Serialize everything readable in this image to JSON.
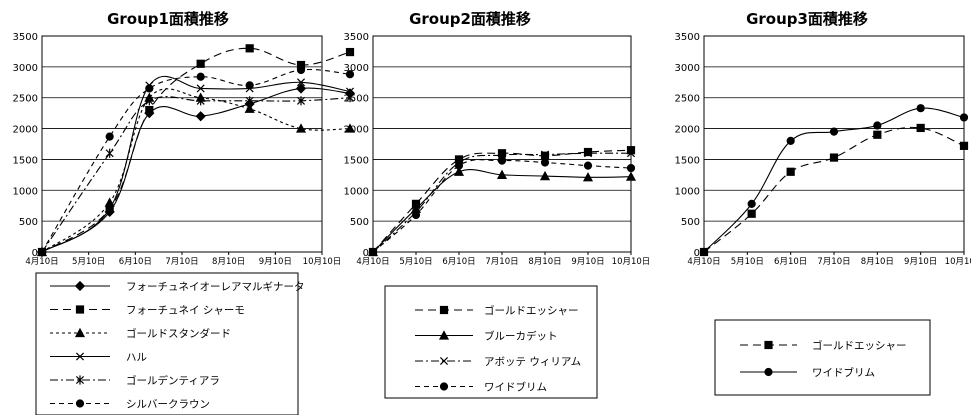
{
  "chart_data": [
    {
      "type": "line",
      "title": "Group1面積推移",
      "categories": [
        "4月10日",
        "5月10日",
        "6月10日",
        "7月10日",
        "8月10日",
        "9月10日",
        "10月10日"
      ],
      "ylim": [
        0,
        3500
      ],
      "yticks": [
        0,
        500,
        1000,
        1500,
        2000,
        2500,
        3000,
        3500
      ],
      "grid": "horizontal",
      "legend_position": "bottom",
      "series": [
        {
          "name": "フォーチュネイオーレアマルギナータ",
          "x": [
            0,
            1.45,
            2.3,
            3.4,
            4.45,
            5.55,
            6.6
          ],
          "values": [
            0,
            650,
            2250,
            2200,
            2400,
            2650,
            2570
          ],
          "dash": "solid",
          "marker": "diamond"
        },
        {
          "name": "フォーチュネイ シャーモ",
          "x": [
            0,
            1.45,
            2.3,
            3.4,
            4.45,
            5.55,
            6.6
          ],
          "values": [
            0,
            700,
            2300,
            3050,
            3300,
            3030,
            3240
          ],
          "dash": "long",
          "marker": "square"
        },
        {
          "name": "ゴールドスタンダード",
          "x": [
            0,
            1.45,
            2.3,
            3.4,
            4.45,
            5.55,
            6.6
          ],
          "values": [
            0,
            800,
            2500,
            2500,
            2320,
            2000,
            2000
          ],
          "dash": "short",
          "marker": "triangle"
        },
        {
          "name": "ハル",
          "x": [
            0,
            1.45,
            2.3,
            3.4,
            4.45,
            5.55,
            6.6
          ],
          "values": [
            0,
            700,
            2700,
            2650,
            2650,
            2750,
            2600
          ],
          "dash": "solid",
          "marker": "x"
        },
        {
          "name": "ゴールデンティアラ",
          "x": [
            0,
            1.45,
            2.3,
            3.4,
            4.45,
            5.55,
            6.6
          ],
          "values": [
            0,
            1600,
            2450,
            2450,
            2450,
            2450,
            2500
          ],
          "dash": "dashdot",
          "marker": "star"
        },
        {
          "name": "シルバークラウン",
          "x": [
            0,
            1.45,
            2.3,
            3.4,
            4.45,
            5.55,
            6.6
          ],
          "values": [
            0,
            1870,
            2650,
            2840,
            2700,
            2950,
            2880
          ],
          "dash": "medium",
          "marker": "circle"
        }
      ]
    },
    {
      "type": "line",
      "title": "Group2面積推移",
      "categories": [
        "4月10日",
        "5月10日",
        "6月10日",
        "7月10日",
        "8月10日",
        "9月10日",
        "10月10日"
      ],
      "ylim": [
        0,
        3500
      ],
      "yticks": [
        0,
        500,
        1000,
        1500,
        2000,
        2500,
        3000,
        3500
      ],
      "grid": "horizontal",
      "legend_position": "bottom",
      "series": [
        {
          "name": "ゴールドエッシャー",
          "x": [
            0,
            1.0,
            2.0,
            3.0,
            4.0,
            5.0,
            6.0
          ],
          "values": [
            0,
            780,
            1500,
            1600,
            1560,
            1620,
            1650
          ],
          "dash": "long",
          "marker": "square"
        },
        {
          "name": "ブルーカデット",
          "x": [
            0,
            1.0,
            2.0,
            3.0,
            4.0,
            5.0,
            6.0
          ],
          "values": [
            0,
            700,
            1300,
            1250,
            1230,
            1210,
            1220
          ],
          "dash": "solid",
          "marker": "triangle"
        },
        {
          "name": "アボッテ ウィリアム",
          "x": [
            0,
            1.0,
            2.0,
            3.0,
            4.0,
            5.0,
            6.0
          ],
          "values": [
            0,
            650,
            1450,
            1570,
            1580,
            1600,
            1600
          ],
          "dash": "dashdot",
          "marker": "x"
        },
        {
          "name": "ワイドブリム",
          "x": [
            0,
            1.0,
            2.0,
            3.0,
            4.0,
            5.0,
            6.0
          ],
          "values": [
            0,
            600,
            1400,
            1480,
            1450,
            1400,
            1360
          ],
          "dash": "medium",
          "marker": "circle"
        }
      ]
    },
    {
      "type": "line",
      "title": "Group3面積推移",
      "categories": [
        "4月10日",
        "5月10日",
        "6月10日",
        "7月10日",
        "8月10日",
        "9月10日",
        "10月10日"
      ],
      "ylim": [
        0,
        3500
      ],
      "yticks": [
        0,
        500,
        1000,
        1500,
        2000,
        2500,
        3000,
        3500
      ],
      "grid": "horizontal",
      "legend_position": "bottom",
      "series": [
        {
          "name": "ゴールドエッシャー",
          "x": [
            0,
            1.1,
            2.0,
            3.0,
            4.0,
            5.0,
            6.0
          ],
          "values": [
            0,
            620,
            1300,
            1530,
            1900,
            2010,
            1720
          ],
          "dash": "long",
          "marker": "square"
        },
        {
          "name": "ワイドブリム",
          "x": [
            0,
            1.1,
            2.0,
            3.0,
            4.0,
            5.0,
            6.0
          ],
          "values": [
            0,
            780,
            1800,
            1950,
            2050,
            2330,
            2180
          ],
          "dash": "solid",
          "marker": "circle"
        }
      ]
    }
  ]
}
